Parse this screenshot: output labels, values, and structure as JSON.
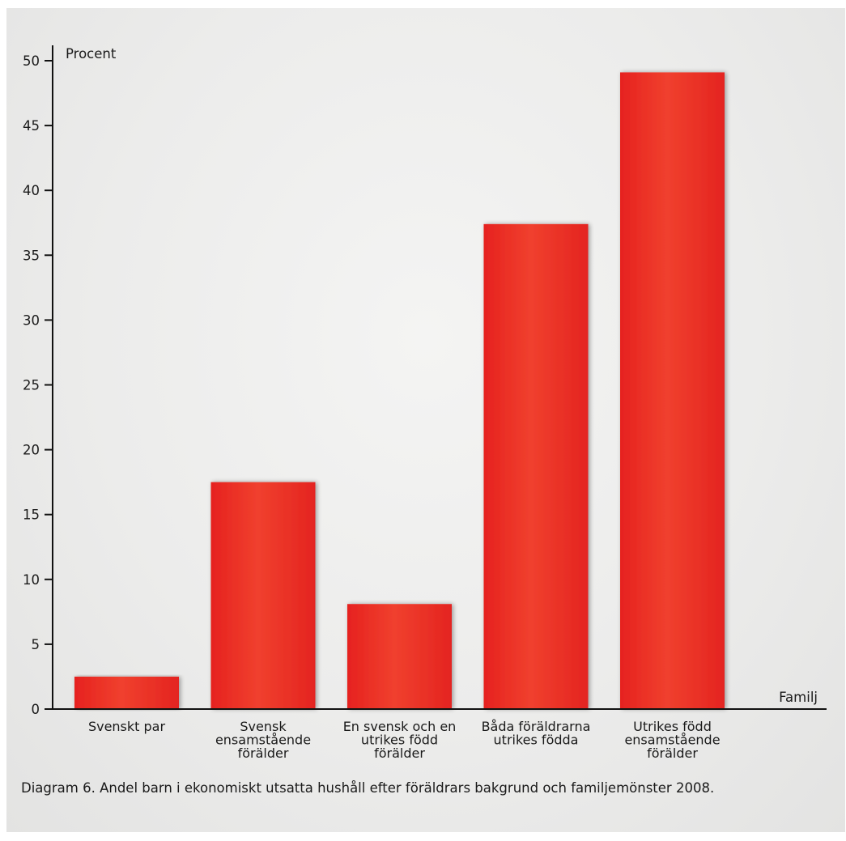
{
  "chart_data": {
    "type": "bar",
    "ylabel": "Procent",
    "xlabel": "Familj",
    "ylim": [
      0,
      50
    ],
    "yticks": [
      0,
      5,
      10,
      15,
      20,
      25,
      30,
      35,
      40,
      45,
      50
    ],
    "categories": [
      [
        "Svenskt par"
      ],
      [
        "Svensk",
        "ensamstående",
        "förälder"
      ],
      [
        "En svensk och en",
        "utrikes född",
        "förälder"
      ],
      [
        "Båda föräldrarna",
        "utrikes födda"
      ],
      [
        "Utrikes född",
        "ensamstående",
        "förälder"
      ]
    ],
    "values": [
      2.5,
      17.5,
      8.1,
      37.4,
      49.1
    ],
    "bar_color": "#e8362b",
    "grid": false
  },
  "caption": "Diagram 6. Andel barn i ekonomiskt utsatta hushåll efter föräldrars bakgrund och familjemönster 2008."
}
